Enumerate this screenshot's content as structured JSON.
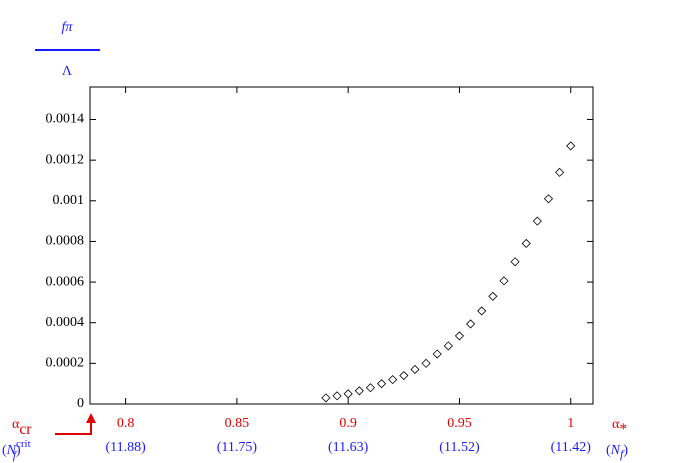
{
  "chart_data": {
    "type": "scatter",
    "y_label": {
      "numerator": "fπ",
      "denominator": "Λ"
    },
    "x_start_label": {
      "symbol": "α",
      "subscript": "cr"
    },
    "x_start_sublabel": {
      "prefix": "(",
      "symbol": "N",
      "subscript": "f",
      "superscript": "crit",
      "suffix": ")"
    },
    "x_end_label": {
      "symbol": "α",
      "subscript": "*"
    },
    "x_end_sublabel": {
      "prefix": "(",
      "symbol": "N",
      "subscript": "f",
      "suffix": ")"
    },
    "x": [
      0.89,
      0.895,
      0.9,
      0.905,
      0.91,
      0.915,
      0.92,
      0.925,
      0.93,
      0.935,
      0.94,
      0.945,
      0.95,
      0.955,
      0.96,
      0.965,
      0.97,
      0.975,
      0.98,
      0.985,
      0.99,
      0.995,
      1.0
    ],
    "values": [
      3e-05,
      4e-05,
      5e-05,
      6.5e-05,
      8e-05,
      0.0001,
      0.00012,
      0.00014,
      0.00017,
      0.0002,
      0.000246,
      0.000286,
      0.000335,
      0.000394,
      0.000458,
      0.00053,
      0.000606,
      0.0007,
      0.00079,
      0.0009,
      0.00101,
      0.00114,
      0.00127
    ],
    "color": "#000000",
    "marker": "diamond",
    "xlim": [
      0.784,
      1.01
    ],
    "ylim": [
      0,
      0.00156
    ],
    "xticks": [
      0.8,
      0.85,
      0.9,
      0.95,
      1
    ],
    "secondary_xtick_labels": [
      "(11.88)",
      "(11.75)",
      "(11.63)",
      "(11.52)",
      "(11.42)"
    ],
    "yticks": [
      0,
      0.0002,
      0.0004,
      0.0006,
      0.0008,
      0.001,
      0.0012,
      0.0014
    ],
    "xtick_color": "#e00000",
    "secondary_color": "#1a1aff",
    "label_color": "#1a1aff",
    "alpha_color": "#e00000"
  }
}
